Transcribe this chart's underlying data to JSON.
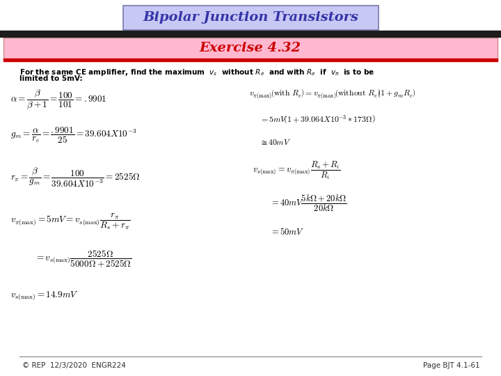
{
  "title": "Bipolar Junction Transistors",
  "subtitle": "Exercise 4.32",
  "title_box_color": "#c8c8f5",
  "subtitle_box_color": "#ffb8d0",
  "title_border_color": "#7878b0",
  "body_bg": "#ffffff",
  "footer_left": "© REP  12/3/2020  ENGR224",
  "footer_right": "Page BJT 4.1-61",
  "problem_line1": "For the same CE amplifier, find the maximum  $v_s$  without $R_e$  and with $R_e$  if  $v_{\\pi}$  is to be",
  "problem_line2": "limited to 5mV:"
}
